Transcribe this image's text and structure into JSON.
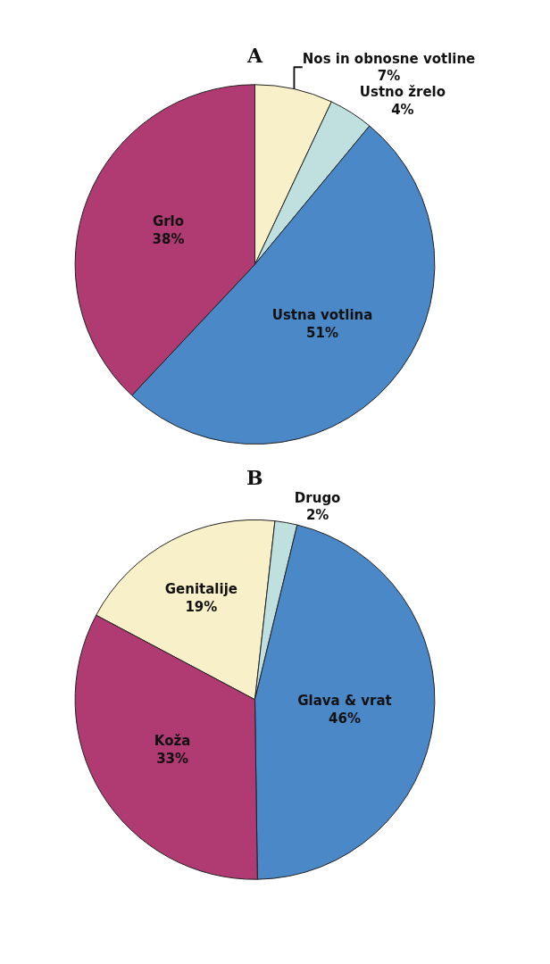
{
  "chart_data": [
    {
      "type": "pie",
      "title": "A",
      "categories": [
        "Nos in obnosne votline",
        "Ustno žrelo",
        "Ustna votlina",
        "Grlo"
      ],
      "values": [
        7,
        4,
        51,
        38
      ],
      "colors": [
        "#f8f0c8",
        "#c0e0e0",
        "#4a88c8",
        "#b03a72"
      ],
      "value_labels": [
        "7%",
        "4%",
        "51%",
        "38%"
      ]
    },
    {
      "type": "pie",
      "title": "B",
      "categories": [
        "Genitalije",
        "Drugo",
        "Glava & vrat",
        "Koža"
      ],
      "values": [
        19,
        2,
        46,
        33
      ],
      "colors": [
        "#f8f0c8",
        "#c0e0e0",
        "#4a88c8",
        "#b03a72"
      ],
      "value_labels": [
        "19%",
        "2%",
        "46%",
        "33%"
      ]
    }
  ]
}
